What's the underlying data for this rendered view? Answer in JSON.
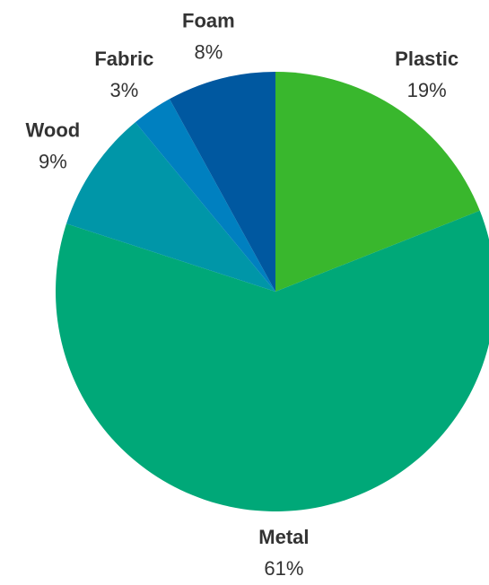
{
  "chart_data": {
    "type": "pie",
    "start_angle_deg": 0,
    "direction": "clockwise",
    "slices": [
      {
        "label": "Plastic",
        "value": 19,
        "value_label": "19%",
        "color": "#39b72d"
      },
      {
        "label": "Metal",
        "value": 61,
        "value_label": "61%",
        "color": "#00a878"
      },
      {
        "label": "Wood",
        "value": 9,
        "value_label": "9%",
        "color": "#0096a8"
      },
      {
        "label": "Fabric",
        "value": 3,
        "value_label": "3%",
        "color": "#0080c0"
      },
      {
        "label": "Foam",
        "value": 8,
        "value_label": "8%",
        "color": "#0058a0"
      }
    ]
  }
}
